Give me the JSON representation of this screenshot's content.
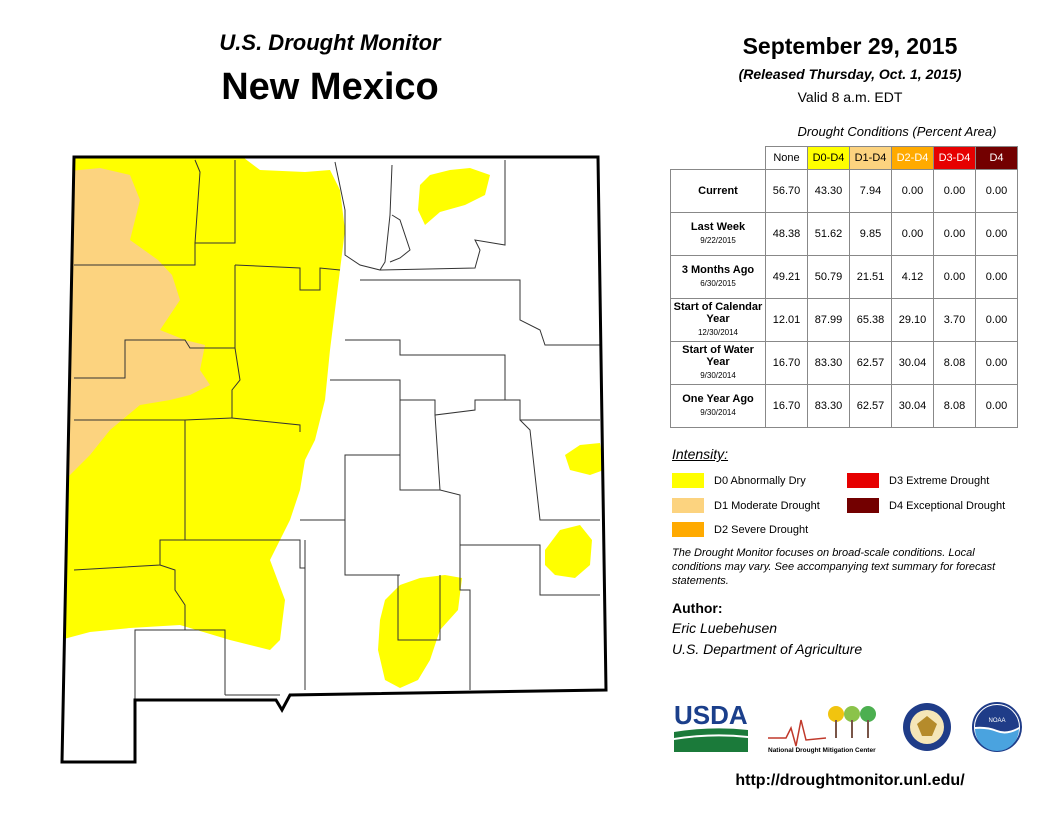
{
  "header": {
    "title": "U.S. Drought Monitor",
    "state": "New Mexico",
    "date": "September 29, 2015",
    "released": "(Released Thursday, Oct. 1, 2015)",
    "valid": "Valid 8 a.m. EDT"
  },
  "table": {
    "caption": "Drought Conditions (Percent Area)",
    "columns": [
      "None",
      "D0-D4",
      "D1-D4",
      "D2-D4",
      "D3-D4",
      "D4"
    ],
    "column_colors": [
      "#ffffff",
      "#ffff00",
      "#fcd37f",
      "#ffaa00",
      "#e60000",
      "#730000"
    ],
    "column_text_colors": [
      "#000000",
      "#000000",
      "#000000",
      "#ffffff",
      "#ffffff",
      "#ffffff"
    ],
    "rows": [
      {
        "label": "Current",
        "sub": "",
        "values": [
          "56.70",
          "43.30",
          "7.94",
          "0.00",
          "0.00",
          "0.00"
        ]
      },
      {
        "label": "Last Week",
        "sub": "9/22/2015",
        "values": [
          "48.38",
          "51.62",
          "9.85",
          "0.00",
          "0.00",
          "0.00"
        ]
      },
      {
        "label": "3 Months Ago",
        "sub": "6/30/2015",
        "values": [
          "49.21",
          "50.79",
          "21.51",
          "4.12",
          "0.00",
          "0.00"
        ]
      },
      {
        "label": "Start of Calendar Year",
        "sub": "12/30/2014",
        "values": [
          "12.01",
          "87.99",
          "65.38",
          "29.10",
          "3.70",
          "0.00"
        ]
      },
      {
        "label": "Start of Water Year",
        "sub": "9/30/2014",
        "values": [
          "16.70",
          "83.30",
          "62.57",
          "30.04",
          "8.08",
          "0.00"
        ]
      },
      {
        "label": "One Year Ago",
        "sub": "9/30/2014",
        "values": [
          "16.70",
          "83.30",
          "62.57",
          "30.04",
          "8.08",
          "0.00"
        ]
      }
    ]
  },
  "legend": {
    "title": "Intensity:",
    "items": [
      {
        "label": "D0 Abnormally Dry",
        "color": "#ffff00"
      },
      {
        "label": "D1 Moderate Drought",
        "color": "#fcd37f"
      },
      {
        "label": "D2 Severe Drought",
        "color": "#ffaa00"
      },
      {
        "label": "D3 Extreme Drought",
        "color": "#e60000"
      },
      {
        "label": "D4 Exceptional Drought",
        "color": "#730000"
      }
    ]
  },
  "note": "The Drought Monitor focuses on broad-scale conditions. Local conditions may vary. See accompanying text summary for forecast statements.",
  "author": {
    "label": "Author:",
    "name": "Eric Luebehusen",
    "org": "U.S. Department of Agriculture"
  },
  "logos": [
    "USDA",
    "National Drought Mitigation Center",
    "Department of Commerce seal",
    "NOAA"
  ],
  "logo_text": {
    "usda": "USDA",
    "ndmc": "National Drought Mitigation Center",
    "noaa": "NOAA"
  },
  "url": "http://droughtmonitor.unl.edu/",
  "map_colors": {
    "d0": "#ffff00",
    "d1": "#fcd37f"
  }
}
